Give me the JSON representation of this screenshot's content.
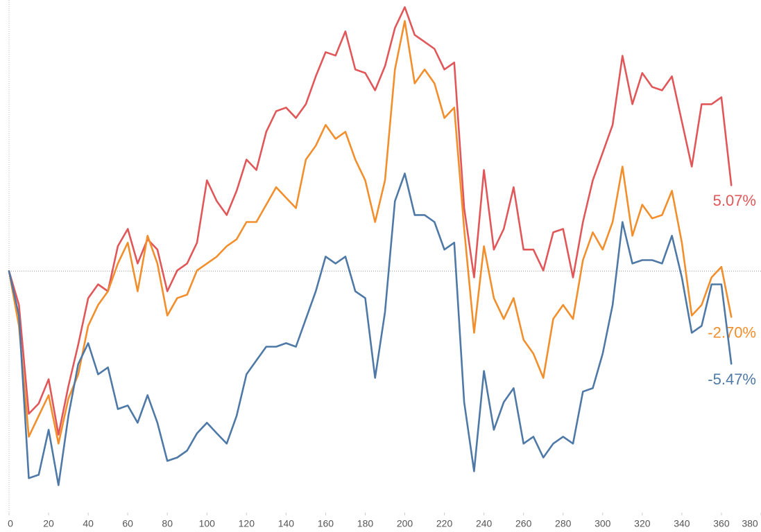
{
  "chart_data": {
    "type": "line",
    "x": [
      0,
      5,
      10,
      15,
      20,
      25,
      30,
      35,
      40,
      45,
      50,
      55,
      60,
      65,
      70,
      75,
      80,
      85,
      90,
      95,
      100,
      105,
      110,
      115,
      120,
      125,
      130,
      135,
      140,
      145,
      150,
      155,
      160,
      165,
      170,
      175,
      180,
      185,
      190,
      195,
      200,
      205,
      210,
      215,
      220,
      225,
      230,
      235,
      240,
      245,
      250,
      255,
      260,
      265,
      270,
      275,
      280,
      285,
      290,
      295,
      300,
      305,
      310,
      315,
      320,
      325,
      330,
      335,
      340,
      345,
      350,
      355,
      360,
      365
    ],
    "series": [
      {
        "color": "#e15759",
        "values": [
          0,
          -2.0,
          -8.42,
          -7.81,
          -6.38,
          -9.65,
          -6.79,
          -4.33,
          -1.6,
          -0.78,
          -1.19,
          1.47,
          2.49,
          0.45,
          1.88,
          1.27,
          -1.19,
          0.04,
          0.45,
          1.68,
          5.36,
          4.13,
          3.31,
          4.74,
          6.58,
          5.97,
          8.22,
          9.44,
          9.65,
          9.04,
          9.85,
          11.49,
          12.92,
          12.72,
          14.15,
          11.9,
          11.69,
          10.67,
          12.1,
          14.35,
          15.58,
          13.94,
          13.53,
          13.12,
          11.9,
          12.31,
          3.72,
          -0.37,
          5.97,
          1.27,
          2.49,
          4.95,
          1.27,
          1.27,
          0.04,
          2.29,
          2.49,
          -0.37,
          2.9,
          5.36,
          6.99,
          8.63,
          12.71,
          9.85,
          11.69,
          10.87,
          10.67,
          11.49,
          8.83,
          6.17,
          9.85,
          9.85,
          10.26,
          5.07
        ],
        "value_labels": [
          null,
          null,
          null,
          null,
          null,
          null,
          null,
          null,
          null,
          null,
          null,
          null,
          null,
          null,
          null,
          null,
          null,
          null,
          null,
          null,
          null,
          null,
          null,
          null,
          null,
          null,
          null,
          null,
          null,
          null,
          null,
          null,
          null,
          null,
          null,
          null,
          null,
          null,
          null,
          null,
          null,
          null,
          null,
          null,
          null,
          null,
          null,
          null,
          null,
          null,
          null,
          null,
          null,
          null,
          null,
          null,
          null,
          null,
          null,
          null,
          null,
          null,
          null,
          null,
          null,
          null,
          null,
          null,
          null,
          null,
          null,
          null,
          null,
          "5.07%"
        ]
      },
      {
        "color": "#f28e2b",
        "values": [
          0,
          -3.23,
          -9.77,
          -8.54,
          -7.32,
          -10.18,
          -7.52,
          -6.09,
          -3.23,
          -2.0,
          -1.19,
          0.45,
          1.68,
          -1.19,
          2.09,
          0.45,
          -2.62,
          -1.59,
          -1.39,
          0.04,
          0.45,
          0.86,
          1.47,
          1.88,
          2.9,
          2.9,
          3.92,
          4.95,
          4.33,
          3.72,
          6.58,
          7.4,
          8.63,
          7.81,
          8.22,
          6.58,
          5.36,
          2.9,
          5.36,
          11.9,
          14.76,
          11.08,
          11.9,
          11.08,
          9.04,
          9.65,
          2.49,
          -3.64,
          1.47,
          -1.59,
          -2.82,
          -1.59,
          -4.05,
          -4.87,
          -6.3,
          -2.82,
          -2.0,
          -2.82,
          0.65,
          2.29,
          1.27,
          2.9,
          6.17,
          2.09,
          3.92,
          3.11,
          3.31,
          4.74,
          1.68,
          -2.62,
          -2.0,
          -0.37,
          0.25,
          -2.7
        ],
        "value_labels": [
          null,
          null,
          null,
          null,
          null,
          null,
          null,
          null,
          null,
          null,
          null,
          null,
          null,
          null,
          null,
          null,
          null,
          null,
          null,
          null,
          null,
          null,
          null,
          null,
          null,
          null,
          null,
          null,
          null,
          null,
          null,
          null,
          null,
          null,
          null,
          null,
          null,
          null,
          null,
          null,
          null,
          null,
          null,
          null,
          null,
          null,
          null,
          null,
          null,
          null,
          null,
          null,
          null,
          null,
          null,
          null,
          null,
          null,
          null,
          null,
          null,
          null,
          null,
          null,
          null,
          null,
          null,
          null,
          null,
          null,
          null,
          null,
          null,
          "-2.70%"
        ]
      },
      {
        "color": "#4e79a7",
        "values": [
          0,
          -2.62,
          -12.22,
          -12.02,
          -9.36,
          -12.63,
          -8.54,
          -5.48,
          -4.25,
          -6.09,
          -5.68,
          -8.14,
          -7.93,
          -8.95,
          -7.32,
          -8.95,
          -11.2,
          -11.0,
          -10.59,
          -9.57,
          -8.95,
          -9.57,
          -10.18,
          -8.54,
          -6.09,
          -5.27,
          -4.46,
          -4.46,
          -4.25,
          -4.46,
          -2.82,
          -1.19,
          0.86,
          0.45,
          0.86,
          -1.19,
          -1.59,
          -6.3,
          -2.41,
          4.13,
          5.76,
          3.31,
          3.31,
          2.9,
          1.27,
          1.68,
          -7.73,
          -11.81,
          -5.89,
          -9.36,
          -7.73,
          -6.91,
          -10.18,
          -9.77,
          -11.0,
          -10.18,
          -9.77,
          -10.18,
          -7.11,
          -6.91,
          -4.87,
          -2.0,
          2.9,
          0.45,
          0.65,
          0.65,
          0.45,
          2.09,
          -0.37,
          -3.64,
          -3.23,
          -0.78,
          -0.78,
          -5.47
        ],
        "value_labels": [
          null,
          null,
          null,
          null,
          null,
          null,
          null,
          null,
          null,
          null,
          null,
          null,
          null,
          null,
          null,
          null,
          null,
          null,
          null,
          null,
          null,
          null,
          null,
          null,
          null,
          null,
          null,
          null,
          null,
          null,
          null,
          null,
          null,
          null,
          null,
          null,
          null,
          null,
          null,
          null,
          null,
          null,
          null,
          null,
          null,
          null,
          null,
          null,
          null,
          null,
          null,
          null,
          null,
          null,
          null,
          null,
          null,
          null,
          null,
          null,
          null,
          null,
          null,
          null,
          null,
          null,
          null,
          null,
          null,
          null,
          null,
          null,
          null,
          "-5.47%"
        ]
      }
    ],
    "xlim": [
      0,
      380
    ],
    "xticks": [
      0,
      20,
      40,
      60,
      80,
      100,
      120,
      140,
      160,
      180,
      200,
      220,
      240,
      260,
      280,
      300,
      320,
      340,
      360,
      380
    ],
    "ylim": [
      -14.25,
      16
    ],
    "zero_line": true
  }
}
